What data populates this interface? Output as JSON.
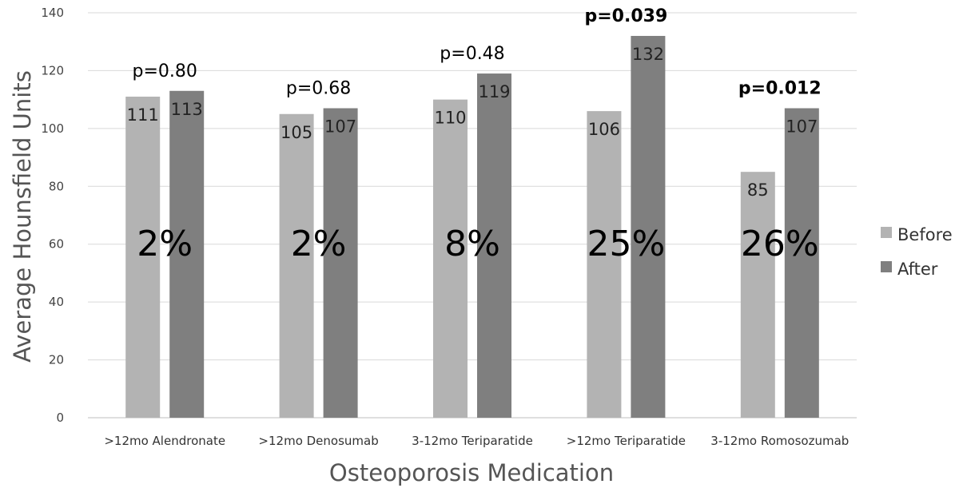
{
  "chart_data": {
    "type": "bar",
    "title": "",
    "xlabel": "Osteoporosis Medication",
    "ylabel": "Average Hounsfield Units",
    "ylim": [
      0,
      140
    ],
    "yticks": [
      0,
      20,
      40,
      60,
      80,
      100,
      120,
      140
    ],
    "grid": true,
    "legend": "right",
    "categories": [
      ">12mo Alendronate",
      ">12mo Denosumab",
      "3-12mo Teriparatide",
      ">12mo Teriparatide",
      "3-12mo Romosozumab"
    ],
    "series": [
      {
        "name": "Before",
        "color": "#b3b3b3",
        "values": [
          111,
          105,
          110,
          106,
          85
        ]
      },
      {
        "name": "After",
        "color": "#7f7f7f",
        "values": [
          113,
          107,
          119,
          132,
          107
        ]
      }
    ],
    "percent_change": [
      "2%",
      "2%",
      "8%",
      "25%",
      "26%"
    ],
    "p_values": [
      {
        "text": "p=0.80",
        "bold": false
      },
      {
        "text": "p=0.68",
        "bold": false
      },
      {
        "text": "p=0.48",
        "bold": false
      },
      {
        "text": "p=0.039",
        "bold": true
      },
      {
        "text": "p=0.012",
        "bold": true
      }
    ]
  }
}
